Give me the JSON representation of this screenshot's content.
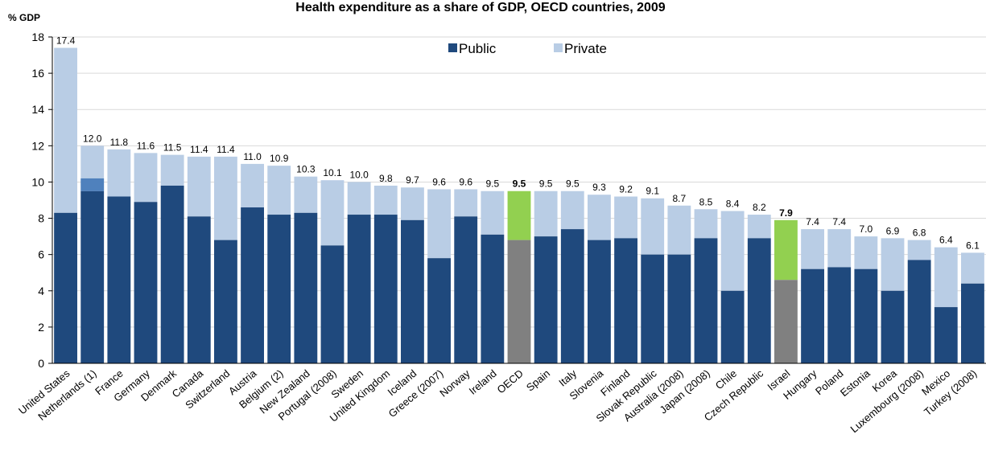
{
  "chart_data": {
    "type": "bar",
    "stacked": true,
    "title": "Health expenditure as a share of GDP, OECD countries, 2009",
    "ylabel": "% GDP",
    "ylim": [
      0,
      18
    ],
    "yticks": [
      0,
      2,
      4,
      6,
      8,
      10,
      12,
      14,
      16,
      18
    ],
    "grid": true,
    "legend_position": "top-center",
    "categories": [
      "United States",
      "Netherlands  (1)",
      "France",
      "Germany",
      "Denmark",
      "Canada",
      "Switzerland",
      "Austria",
      "Belgium (2)",
      "New Zealand",
      "Portugal (2008)",
      "Sweden",
      "United Kingdom",
      "Iceland",
      "Greece (2007)",
      "Norway",
      "Ireland",
      "OECD",
      "Spain",
      "Italy",
      "Slovenia",
      "Finland",
      "Slovak Republic",
      "Australia (2008)",
      "Japan (2008)",
      "Chile",
      "Czech Republic",
      "Israel",
      "Hungary",
      "Poland",
      "Estonia",
      "Korea",
      "Luxembourg (2008)",
      "Mexico",
      "Turkey (2008)"
    ],
    "series": [
      {
        "name": "Public",
        "values": [
          8.3,
          9.5,
          9.2,
          8.9,
          9.8,
          8.1,
          6.8,
          8.6,
          8.2,
          8.3,
          6.5,
          8.2,
          8.2,
          7.9,
          5.8,
          8.1,
          7.1,
          6.8,
          7.0,
          7.4,
          6.8,
          6.9,
          6.0,
          6.0,
          6.9,
          4.0,
          6.9,
          4.6,
          5.2,
          5.3,
          5.2,
          4.0,
          5.7,
          3.1,
          4.4
        ]
      },
      {
        "name": "Private",
        "values": [
          9.1,
          2.5,
          2.6,
          2.7,
          1.7,
          3.3,
          4.6,
          2.4,
          2.7,
          2.0,
          3.6,
          1.8,
          1.6,
          1.8,
          3.8,
          1.5,
          2.4,
          2.7,
          2.5,
          2.1,
          2.5,
          2.3,
          3.1,
          2.7,
          1.6,
          4.4,
          1.3,
          3.3,
          2.2,
          2.1,
          1.8,
          2.9,
          1.1,
          3.3,
          1.7
        ]
      }
    ],
    "totals": [
      17.4,
      12.0,
      11.8,
      11.6,
      11.5,
      11.4,
      11.4,
      11.0,
      10.9,
      10.3,
      10.1,
      10.0,
      9.8,
      9.7,
      9.6,
      9.6,
      9.5,
      9.5,
      9.5,
      9.5,
      9.3,
      9.2,
      9.1,
      8.7,
      8.5,
      8.4,
      8.2,
      7.9,
      7.4,
      7.4,
      7.0,
      6.9,
      6.8,
      6.4,
      6.1
    ],
    "total_labels": [
      "17.4",
      "12.0",
      "11.8",
      "11.6",
      "11.5",
      "11.4",
      "11.4",
      "11.0",
      "10.9",
      "10.3",
      "10.1",
      "10.0",
      "9.8",
      "9.7",
      "9.6",
      "9.6",
      "9.5",
      "9.5",
      "9.5",
      "9.5",
      "9.3",
      "9.2",
      "9.1",
      "8.7",
      "8.5",
      "8.4",
      "8.2",
      "7.9",
      "7.4",
      "7.4",
      "7.0",
      "6.9",
      "6.8",
      "6.4",
      "6.1"
    ],
    "bold_labels": [
      "OECD",
      "Israel"
    ],
    "netherlands_extra_segment": {
      "from": 9.5,
      "to": 10.2,
      "color": "#4f81bd"
    },
    "colors": {
      "public": "#1f497d",
      "private": "#b9cde5",
      "highlight_public": "#808080",
      "highlight_private": "#92d050",
      "axis": "#000000",
      "grid": "#d9d9d9"
    }
  }
}
